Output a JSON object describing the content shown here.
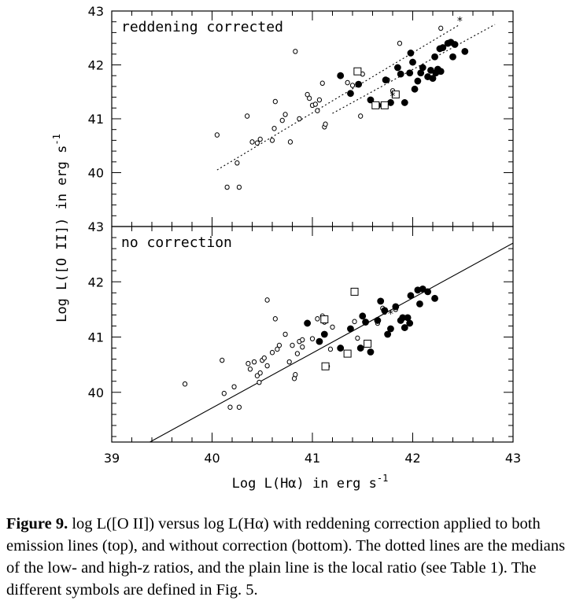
{
  "figure": {
    "ylabel": "Log L([O II])  in erg s",
    "ylabel_sup": "-1",
    "xlabel": "Log L(Hα)  in erg s",
    "xlabel_sup": "-1"
  },
  "chart_data": [
    {
      "type": "scatter",
      "panel_label": "reddening corrected",
      "xlim": [
        39,
        43
      ],
      "ylim": [
        39,
        43
      ],
      "xticks": [],
      "yticks": [
        "40",
        "41",
        "42",
        "43"
      ],
      "series": [
        {
          "marker": "small-open-circle",
          "points": [
            [
              40.05,
              40.7
            ],
            [
              40.15,
              39.73
            ],
            [
              40.25,
              40.18
            ],
            [
              40.27,
              39.73
            ],
            [
              40.35,
              41.05
            ],
            [
              40.4,
              40.57
            ],
            [
              40.45,
              40.55
            ],
            [
              40.48,
              40.62
            ],
            [
              40.6,
              40.6
            ],
            [
              40.62,
              40.82
            ],
            [
              40.63,
              41.32
            ],
            [
              40.7,
              40.97
            ],
            [
              40.73,
              41.08
            ],
            [
              40.78,
              40.57
            ],
            [
              40.83,
              42.25
            ],
            [
              40.87,
              41.0
            ],
            [
              40.95,
              41.45
            ],
            [
              40.97,
              41.38
            ],
            [
              41.0,
              41.25
            ],
            [
              41.03,
              41.27
            ],
            [
              41.05,
              41.15
            ],
            [
              41.07,
              41.35
            ],
            [
              41.1,
              41.66
            ],
            [
              41.12,
              40.85
            ],
            [
              41.13,
              40.9
            ],
            [
              41.35,
              41.67
            ],
            [
              41.4,
              41.62
            ],
            [
              41.48,
              41.05
            ],
            [
              41.5,
              41.83
            ],
            [
              41.75,
              41.72
            ],
            [
              41.8,
              41.52
            ],
            [
              41.87,
              42.4
            ],
            [
              42.28,
              42.68
            ]
          ]
        },
        {
          "marker": "filled-circle",
          "points": [
            [
              41.28,
              41.8
            ],
            [
              41.38,
              41.47
            ],
            [
              41.46,
              41.64
            ],
            [
              41.58,
              41.35
            ],
            [
              41.65,
              41.25
            ],
            [
              41.73,
              41.72
            ],
            [
              41.78,
              41.3
            ],
            [
              41.85,
              41.95
            ],
            [
              41.88,
              41.83
            ],
            [
              41.92,
              41.3
            ],
            [
              41.97,
              41.85
            ],
            [
              41.98,
              42.22
            ],
            [
              42.0,
              42.05
            ],
            [
              42.02,
              41.55
            ],
            [
              42.05,
              41.7
            ],
            [
              42.08,
              41.85
            ],
            [
              42.1,
              41.95
            ],
            [
              42.15,
              41.78
            ],
            [
              42.18,
              41.9
            ],
            [
              42.2,
              41.75
            ],
            [
              42.22,
              42.15
            ],
            [
              42.23,
              41.85
            ],
            [
              42.25,
              41.92
            ],
            [
              42.27,
              42.3
            ],
            [
              42.28,
              41.88
            ],
            [
              42.3,
              42.32
            ],
            [
              42.35,
              42.4
            ],
            [
              42.38,
              42.42
            ],
            [
              42.42,
              42.38
            ],
            [
              42.4,
              42.15
            ],
            [
              42.52,
              42.25
            ]
          ]
        },
        {
          "marker": "open-square",
          "points": [
            [
              41.45,
              41.88
            ],
            [
              41.63,
              41.25
            ],
            [
              41.72,
              41.25
            ],
            [
              41.83,
              41.45
            ]
          ]
        },
        {
          "marker": "star",
          "points": [
            [
              41.8,
              41.42
            ],
            [
              42.47,
              42.82
            ]
          ]
        }
      ],
      "lines": [
        {
          "style": "dotted",
          "x": [
            40.05,
            42.47
          ],
          "y": [
            40.05,
            42.75
          ]
        },
        {
          "style": "dotted",
          "x": [
            41.2,
            42.82
          ],
          "y": [
            41.1,
            42.75
          ]
        }
      ]
    },
    {
      "type": "scatter",
      "panel_label": "no correction",
      "xlim": [
        39,
        43
      ],
      "ylim": [
        39.1,
        43
      ],
      "xticks": [
        "39",
        "40",
        "41",
        "42",
        "43"
      ],
      "yticks": [
        "40",
        "41",
        "42",
        "43"
      ],
      "series": [
        {
          "marker": "small-open-circle",
          "points": [
            [
              39.73,
              40.15
            ],
            [
              40.1,
              40.58
            ],
            [
              40.12,
              39.98
            ],
            [
              40.18,
              39.73
            ],
            [
              40.22,
              40.1
            ],
            [
              40.27,
              39.73
            ],
            [
              40.36,
              40.52
            ],
            [
              40.38,
              40.42
            ],
            [
              40.42,
              40.55
            ],
            [
              40.45,
              40.3
            ],
            [
              40.47,
              40.18
            ],
            [
              40.48,
              40.35
            ],
            [
              40.5,
              40.58
            ],
            [
              40.52,
              40.62
            ],
            [
              40.55,
              40.48
            ],
            [
              40.55,
              41.67
            ],
            [
              40.6,
              40.72
            ],
            [
              40.63,
              41.33
            ],
            [
              40.65,
              40.78
            ],
            [
              40.67,
              40.85
            ],
            [
              40.73,
              41.05
            ],
            [
              40.77,
              40.55
            ],
            [
              40.8,
              40.85
            ],
            [
              40.82,
              40.25
            ],
            [
              40.83,
              40.32
            ],
            [
              40.85,
              40.7
            ],
            [
              40.87,
              40.92
            ],
            [
              40.9,
              40.82
            ],
            [
              40.9,
              40.95
            ],
            [
              41.0,
              40.97
            ],
            [
              41.05,
              41.33
            ],
            [
              41.1,
              41.38
            ],
            [
              41.12,
              41.27
            ],
            [
              41.15,
              40.47
            ],
            [
              41.18,
              40.78
            ],
            [
              41.2,
              41.18
            ],
            [
              41.42,
              41.28
            ],
            [
              41.45,
              40.98
            ],
            [
              41.65,
              41.25
            ],
            [
              41.7,
              41.52
            ],
            [
              41.72,
              41.45
            ],
            [
              41.83,
              41.5
            ]
          ]
        },
        {
          "marker": "filled-circle",
          "points": [
            [
              40.95,
              41.25
            ],
            [
              41.07,
              40.92
            ],
            [
              41.12,
              41.05
            ],
            [
              41.28,
              40.8
            ],
            [
              41.38,
              41.15
            ],
            [
              41.48,
              40.8
            ],
            [
              41.5,
              41.38
            ],
            [
              41.53,
              41.27
            ],
            [
              41.58,
              40.73
            ],
            [
              41.65,
              41.3
            ],
            [
              41.68,
              41.65
            ],
            [
              41.72,
              41.48
            ],
            [
              41.75,
              41.05
            ],
            [
              41.78,
              41.15
            ],
            [
              41.83,
              41.55
            ],
            [
              41.88,
              41.3
            ],
            [
              41.9,
              41.35
            ],
            [
              41.92,
              41.17
            ],
            [
              41.95,
              41.35
            ],
            [
              41.97,
              41.25
            ],
            [
              41.98,
              41.75
            ],
            [
              42.05,
              41.85
            ],
            [
              42.07,
              41.6
            ],
            [
              42.1,
              41.87
            ],
            [
              42.15,
              41.82
            ],
            [
              42.22,
              41.7
            ]
          ]
        },
        {
          "marker": "open-square",
          "points": [
            [
              41.42,
              41.82
            ],
            [
              41.12,
              41.32
            ],
            [
              41.13,
              40.47
            ],
            [
              41.35,
              40.7
            ],
            [
              41.55,
              40.88
            ]
          ]
        },
        {
          "marker": "star",
          "points": [
            [
              41.78,
              41.42
            ]
          ]
        }
      ],
      "lines": [
        {
          "style": "solid",
          "x": [
            39.38,
            43.0
          ],
          "y": [
            39.1,
            42.7
          ]
        }
      ]
    }
  ],
  "caption": {
    "label": "Figure 9.",
    "text": "log L([O II]) versus log L(Hα) with reddening correction applied to both emission lines (top), and without correction (bottom). The dotted lines are the medians of the low- and high-z ratios, and the plain line is the local ratio (see Table 1). The different symbols are defined in Fig. 5."
  }
}
